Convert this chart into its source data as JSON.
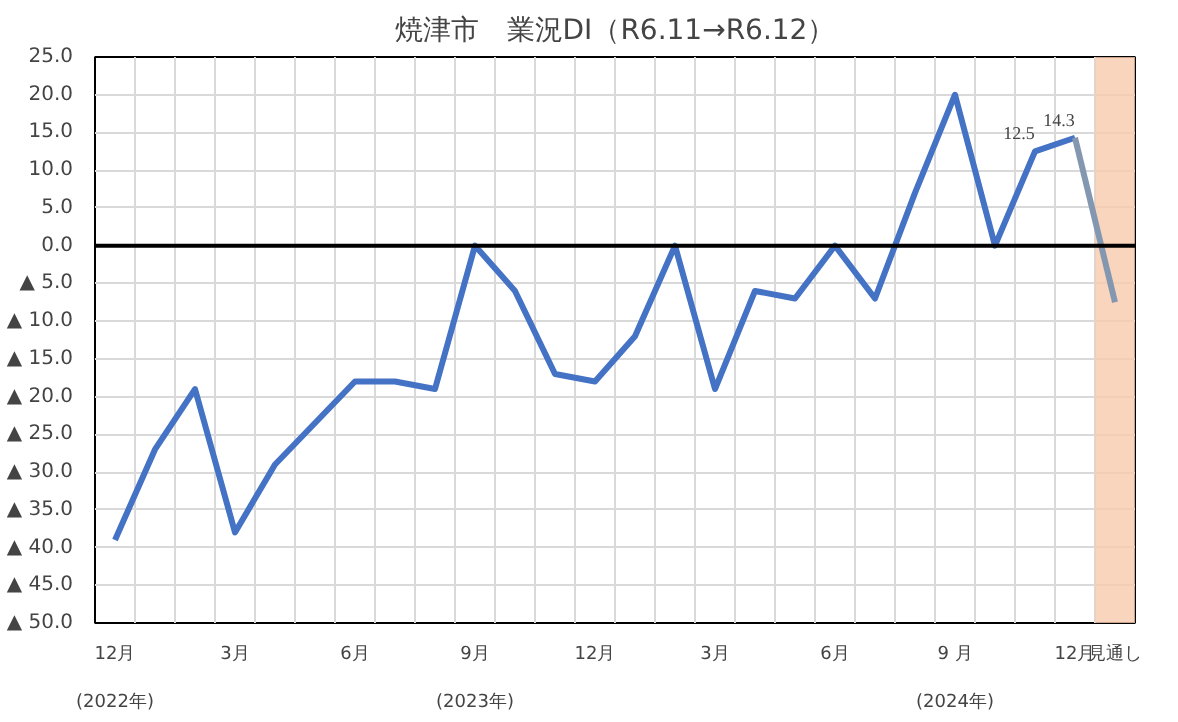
{
  "chart_data": {
    "type": "line",
    "title": "焼津市　業況DI（R6.11→R6.12）",
    "categories": [
      "12月\n\n(2022年)",
      null,
      null,
      "3月",
      null,
      null,
      "6月",
      null,
      null,
      "9月\n\n(2023年)",
      null,
      null,
      "12月",
      null,
      null,
      "3月",
      null,
      null,
      "6月",
      null,
      null,
      "9 月\n\n(2024年)",
      null,
      null,
      "12月",
      "見通し"
    ],
    "series": [
      {
        "color": "#4472c4",
        "values": [
          -39,
          -27,
          -19,
          -38,
          -29,
          -23.5,
          -18,
          -18,
          -19,
          0,
          -6,
          -17,
          -18,
          -12,
          0,
          -19,
          -6,
          -7,
          0,
          -7,
          7,
          20,
          0,
          12.5,
          14.3,
          null
        ],
        "value_labels": [
          null,
          null,
          null,
          null,
          null,
          null,
          null,
          null,
          null,
          null,
          null,
          null,
          null,
          null,
          null,
          null,
          null,
          null,
          null,
          null,
          null,
          null,
          null,
          "12.5",
          "14.3",
          null
        ]
      },
      {
        "color": "#8497b0",
        "values": [
          null,
          null,
          null,
          null,
          null,
          null,
          null,
          null,
          null,
          null,
          null,
          null,
          null,
          null,
          null,
          null,
          null,
          null,
          null,
          null,
          null,
          null,
          null,
          null,
          14.3,
          -7.5
        ]
      }
    ],
    "ylim": [
      -50,
      25
    ],
    "yticks": [
      {
        "value": -50,
        "label": "▲ 50.0"
      },
      {
        "value": -45,
        "label": "▲ 45.0"
      },
      {
        "value": -40,
        "label": "▲ 40.0"
      },
      {
        "value": -35,
        "label": "▲ 35.0"
      },
      {
        "value": -30,
        "label": "▲ 30.0"
      },
      {
        "value": -25,
        "label": "▲ 25.0"
      },
      {
        "value": -20,
        "label": "▲ 20.0"
      },
      {
        "value": -15,
        "label": "▲ 15.0"
      },
      {
        "value": -10,
        "label": "▲ 10.0"
      },
      {
        "value": -5,
        "label": "▲ 5.0"
      },
      {
        "value": 0,
        "label": "0.0"
      },
      {
        "value": 5,
        "label": "5.0"
      },
      {
        "value": 10,
        "label": "10.0"
      },
      {
        "value": 15,
        "label": "15.0"
      },
      {
        "value": 20,
        "label": "20.0"
      },
      {
        "value": 25,
        "label": "25.0"
      }
    ],
    "ref_lines": [
      {
        "axis": "y",
        "value": 0,
        "color": "#000000"
      }
    ],
    "bands": [
      {
        "axis": "x",
        "from": "見通し",
        "to": "見通し",
        "color": "#f8cbad"
      }
    ],
    "grid": true
  }
}
